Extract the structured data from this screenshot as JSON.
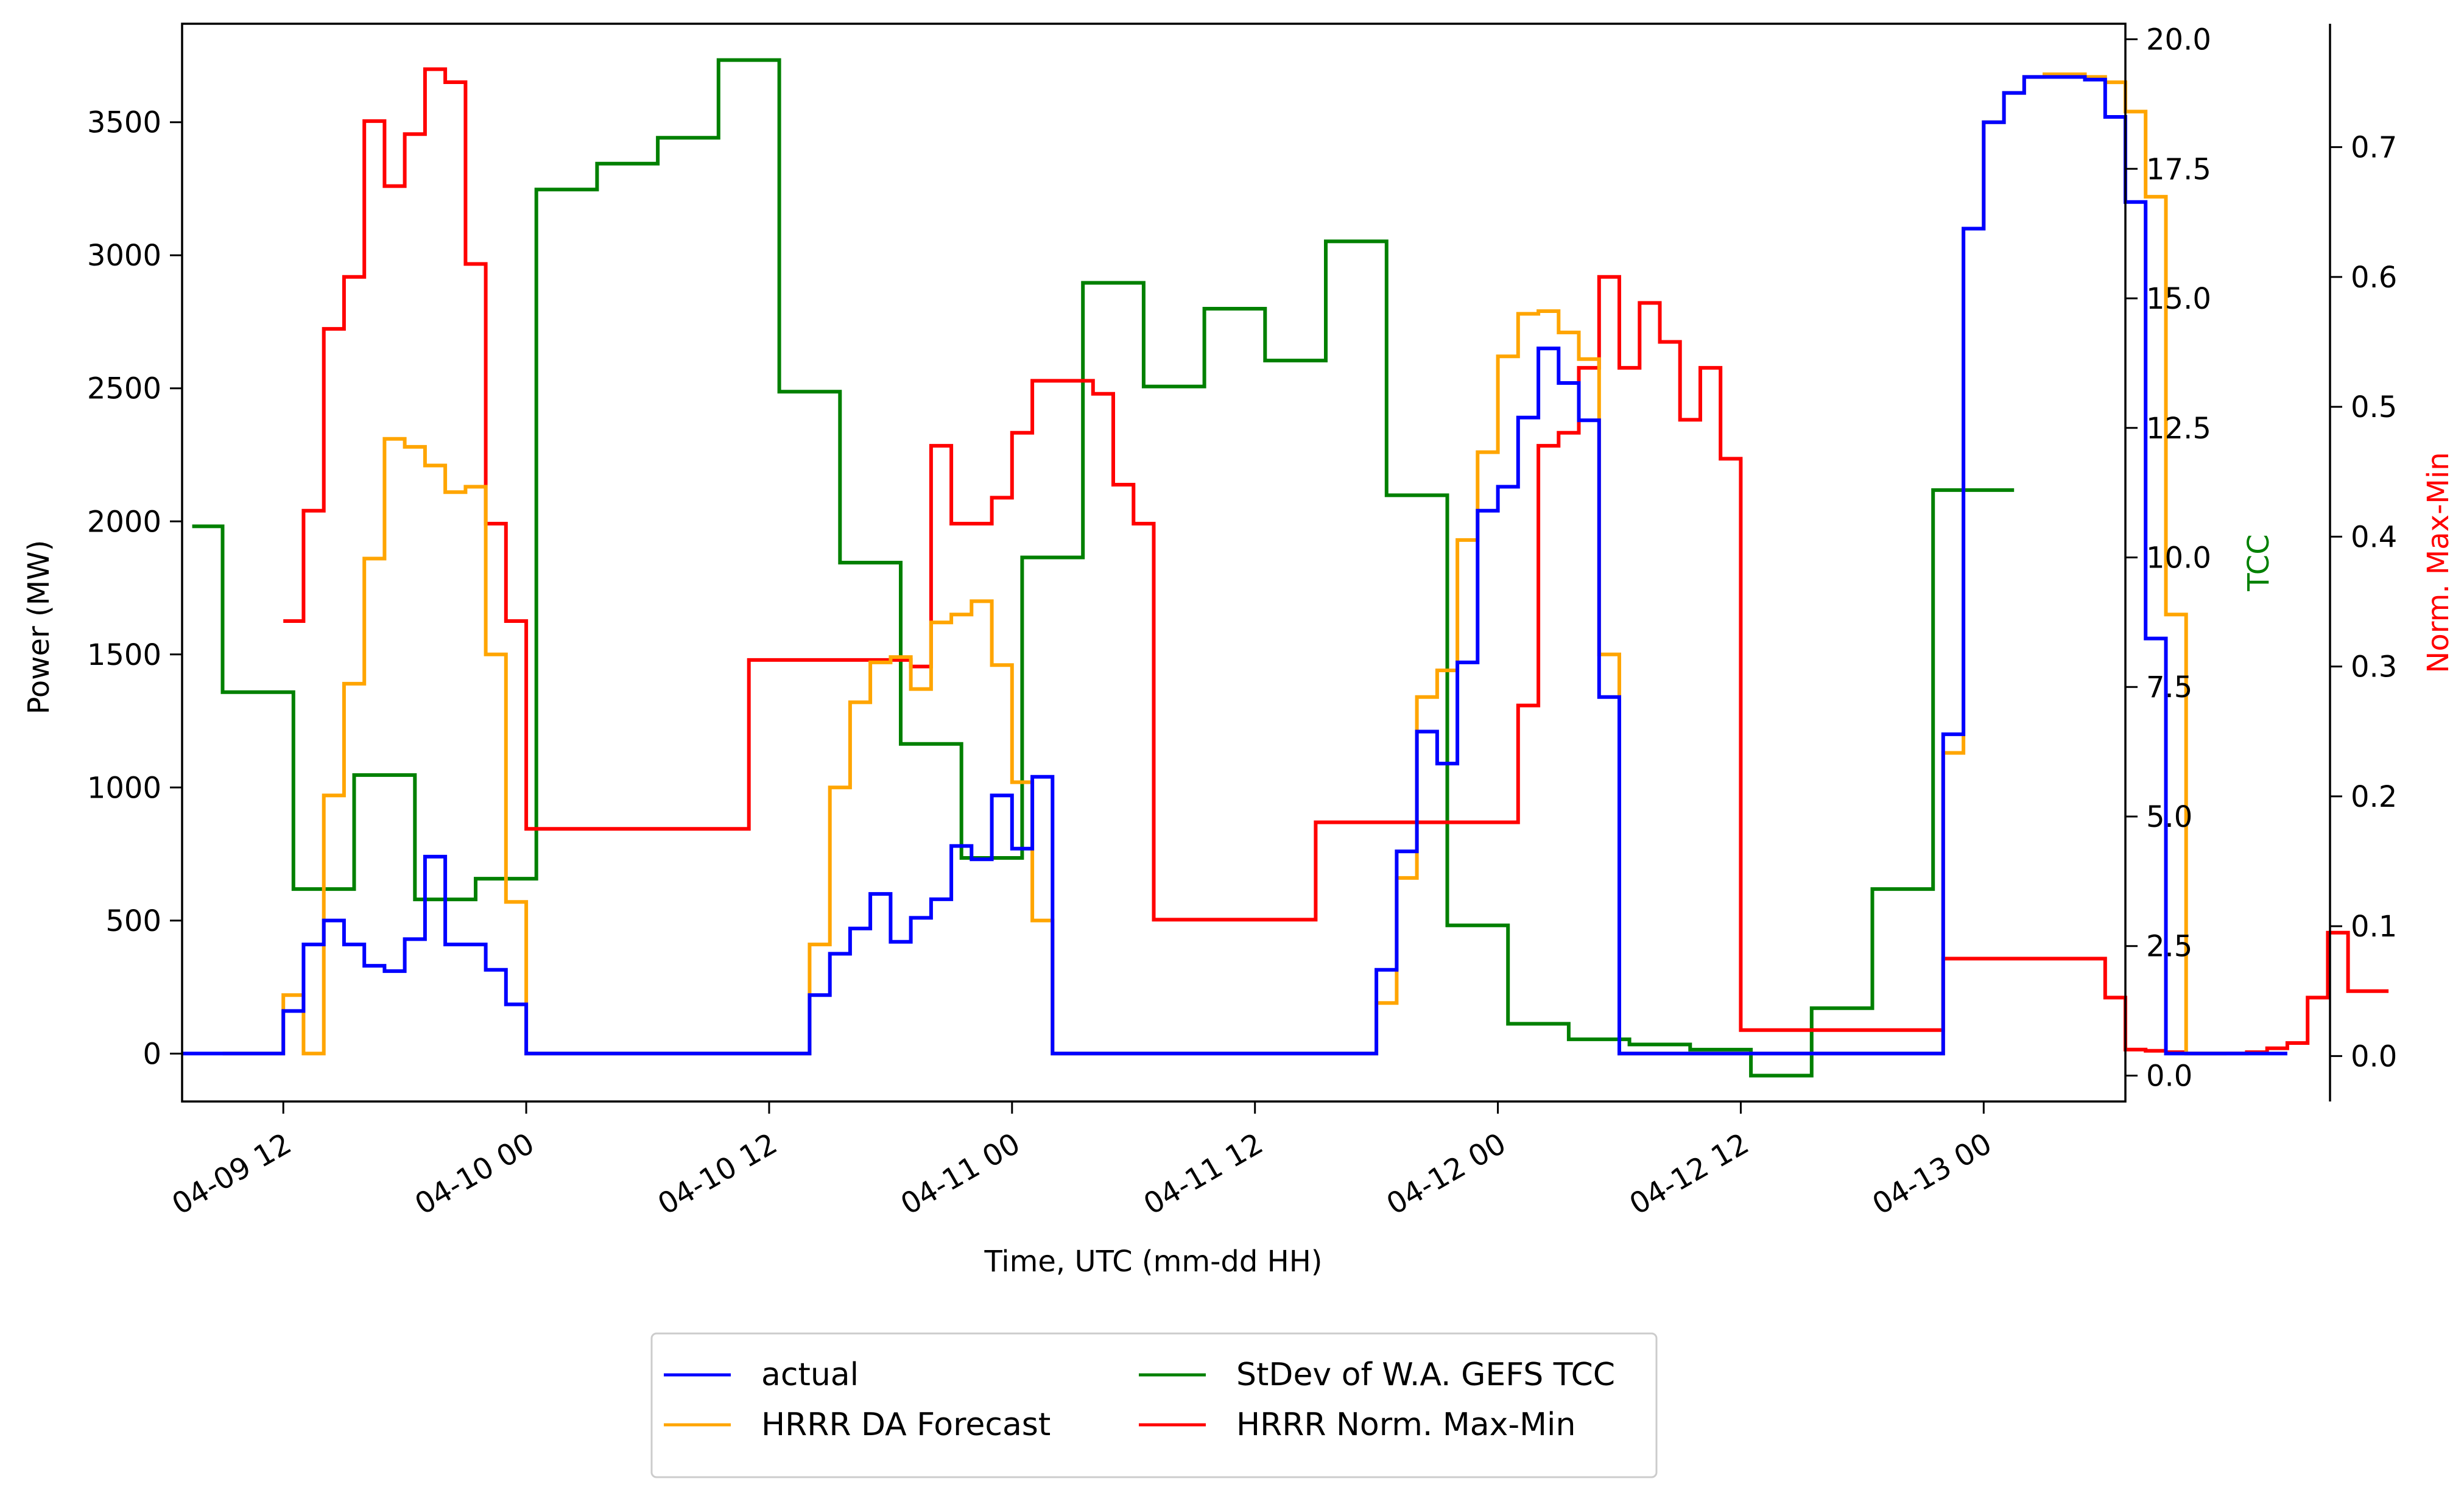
{
  "chart_data": {
    "type": "line",
    "step": true,
    "title": "",
    "xlabel": "Time, UTC (mm-dd HH)",
    "x_range": [
      "2025-04-09 07:00",
      "2025-04-13 07:00"
    ],
    "x_ticks": [
      {
        "t": "2025-04-09 12:00",
        "label": "04-09 12"
      },
      {
        "t": "2025-04-10 00:00",
        "label": "04-10 00"
      },
      {
        "t": "2025-04-10 12:00",
        "label": "04-10 12"
      },
      {
        "t": "2025-04-11 00:00",
        "label": "04-11 00"
      },
      {
        "t": "2025-04-11 12:00",
        "label": "04-11 12"
      },
      {
        "t": "2025-04-12 00:00",
        "label": "04-12 00"
      },
      {
        "t": "2025-04-12 12:00",
        "label": "04-12 12"
      },
      {
        "t": "2025-04-13 00:00",
        "label": "04-13 00"
      }
    ],
    "axes": {
      "power": {
        "label": "Power (MW)",
        "ylim": [
          -180,
          3870
        ],
        "ticks": [
          "0",
          "500",
          "1000",
          "1500",
          "2000",
          "2500",
          "3000",
          "3500"
        ],
        "color": "#000000"
      },
      "tcc": {
        "label": "TCC",
        "ylim": [
          -0.5,
          20.3
        ],
        "ticks": [
          "0.0",
          "2.5",
          "5.0",
          "7.5",
          "10.0",
          "12.5",
          "15.0",
          "17.5",
          "20.0"
        ],
        "color": "#008000"
      },
      "norm": {
        "label": "Norm. Max-Min",
        "ylim": [
          -0.035,
          0.795
        ],
        "ticks": [
          "0.0",
          "0.1",
          "0.2",
          "0.3",
          "0.4",
          "0.5",
          "0.6",
          "0.7"
        ],
        "color": "#ff0000"
      }
    },
    "legend": {
      "placement": "lower-center",
      "items": [
        {
          "label": "actual",
          "color": "#0000ff"
        },
        {
          "label": "StDev of W.A. GEFS TCC",
          "color": "#008000"
        },
        {
          "label": "HRRR DA Forecast",
          "color": "#ffa500"
        },
        {
          "label": "HRRR Norm. Max-Min",
          "color": "#ff0000"
        }
      ]
    },
    "series": [
      {
        "name": "actual",
        "color": "#0000ff",
        "axis": "power",
        "start": "2025-04-09 07:00",
        "values": [
          0,
          0,
          0,
          0,
          0,
          160,
          410,
          500,
          410,
          330,
          310,
          430,
          740,
          410,
          410,
          315,
          185,
          0,
          0,
          0,
          0,
          0,
          0,
          0,
          0,
          0,
          0,
          0,
          0,
          0,
          0,
          220,
          375,
          470,
          600,
          420,
          510,
          580,
          780,
          730,
          970,
          770,
          1040,
          0,
          0,
          0,
          0,
          0,
          0,
          0,
          0,
          0,
          0,
          0,
          0,
          0,
          0,
          0,
          0,
          315,
          760,
          1210,
          1090,
          1470,
          2040,
          2130,
          2390,
          2650,
          2520,
          2380,
          1340,
          0,
          0,
          0,
          0,
          0,
          0,
          0,
          0,
          0,
          0,
          0,
          0,
          0,
          0,
          0,
          0,
          1200,
          3100,
          3500,
          3610,
          3670,
          3670,
          3670,
          3660,
          3520,
          3200,
          1560,
          0,
          0,
          0,
          0,
          0,
          0
        ]
      },
      {
        "name": "HRRR DA Forecast",
        "color": "#ffa500",
        "axis": "power",
        "start": "2025-04-09 09:00",
        "values": [
          0,
          0,
          0,
          220,
          0,
          970,
          1390,
          1860,
          2310,
          2280,
          2210,
          2110,
          2130,
          1500,
          570,
          0,
          0,
          0,
          0,
          0,
          0,
          0,
          0,
          0,
          0,
          0,
          0,
          0,
          0,
          410,
          1000,
          1320,
          1470,
          1490,
          1370,
          1620,
          1650,
          1700,
          1460,
          1020,
          500,
          0,
          0,
          0,
          0,
          0,
          0,
          0,
          0,
          0,
          0,
          0,
          0,
          0,
          0,
          0,
          0,
          190,
          660,
          1340,
          1440,
          1930,
          2260,
          2620,
          2780,
          2790,
          2710,
          2610,
          1500,
          0,
          0,
          0,
          0,
          0,
          0,
          0,
          0,
          0,
          0,
          0,
          0,
          0,
          0,
          0,
          0,
          1130,
          3100,
          3500,
          3610,
          3670,
          3680,
          3680,
          3670,
          3650,
          3540,
          3220,
          1650,
          0,
          0
        ]
      },
      {
        "name": "StDev of W.A. GEFS TCC",
        "color": "#008000",
        "axis": "tcc",
        "times": [
          "2025-04-09 07:30",
          "2025-04-09 09:00",
          "2025-04-09 12:30",
          "2025-04-09 15:30",
          "2025-04-09 18:30",
          "2025-04-09 21:30",
          "2025-04-10 00:30",
          "2025-04-10 03:30",
          "2025-04-10 06:30",
          "2025-04-10 09:30",
          "2025-04-10 12:30",
          "2025-04-10 15:30",
          "2025-04-10 18:30",
          "2025-04-10 21:30",
          "2025-04-11 00:30",
          "2025-04-11 03:30",
          "2025-04-11 06:30",
          "2025-04-11 09:30",
          "2025-04-11 12:30",
          "2025-04-11 15:30",
          "2025-04-11 18:30",
          "2025-04-11 21:30",
          "2025-04-12 00:30",
          "2025-04-12 03:30",
          "2025-04-12 06:30",
          "2025-04-12 09:30",
          "2025-04-12 12:30",
          "2025-04-12 15:30",
          "2025-04-12 18:30",
          "2025-04-12 21:30",
          "2025-04-13 00:30",
          "2025-04-13 01:30"
        ],
        "values": [
          10.6,
          7.4,
          3.6,
          5.8,
          3.4,
          3.8,
          17.1,
          17.6,
          18.1,
          19.6,
          13.2,
          9.9,
          6.4,
          4.2,
          10.0,
          15.3,
          13.3,
          14.8,
          13.8,
          16.1,
          11.2,
          2.9,
          1.0,
          0.7,
          0.6,
          0.5,
          0.0,
          1.3,
          3.6,
          11.3,
          11.3,
          11.3
        ]
      },
      {
        "name": "HRRR Norm. Max-Min",
        "color": "#ff0000",
        "axis": "norm",
        "start": "2025-04-09 12:00",
        "values": [
          0.335,
          0.42,
          0.56,
          0.6,
          0.72,
          0.67,
          0.71,
          0.76,
          0.75,
          0.61,
          0.41,
          0.335,
          0.175,
          0.175,
          0.175,
          0.175,
          0.175,
          0.175,
          0.175,
          0.175,
          0.175,
          0.175,
          0.175,
          0.305,
          0.305,
          0.305,
          0.305,
          0.305,
          0.305,
          0.305,
          0.305,
          0.3,
          0.47,
          0.41,
          0.41,
          0.43,
          0.48,
          0.52,
          0.52,
          0.52,
          0.51,
          0.44,
          0.41,
          0.105,
          0.105,
          0.105,
          0.105,
          0.105,
          0.105,
          0.105,
          0.105,
          0.18,
          0.18,
          0.18,
          0.18,
          0.18,
          0.18,
          0.18,
          0.18,
          0.18,
          0.18,
          0.27,
          0.47,
          0.48,
          0.53,
          0.6,
          0.53,
          0.58,
          0.55,
          0.49,
          0.53,
          0.46,
          0.02,
          0.02,
          0.02,
          0.02,
          0.02,
          0.02,
          0.02,
          0.02,
          0.02,
          0.02,
          0.075,
          0.075,
          0.075,
          0.075,
          0.075,
          0.075,
          0.075,
          0.075,
          0.045,
          0.005,
          0.004,
          0.003,
          0.002,
          0.002,
          0.002,
          0.003,
          0.006,
          0.01,
          0.045,
          0.095,
          0.05,
          0.05
        ]
      }
    ]
  }
}
